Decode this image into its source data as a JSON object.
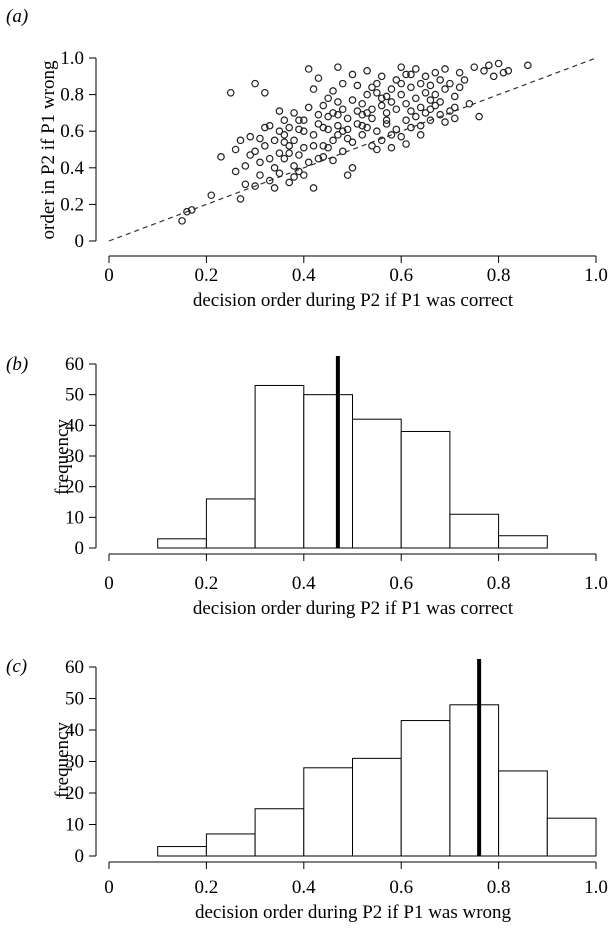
{
  "chart_data": [
    {
      "type": "scatter",
      "panel": "(a)",
      "xlabel": "decision order during P2 if P1 was correct",
      "ylabel": "order in P2 if P1 wrong",
      "xlim": [
        0,
        1.0
      ],
      "ylim": [
        0,
        1.0
      ],
      "xticks": [
        "0",
        "0.2",
        "0.4",
        "0.6",
        "0.8",
        "1.0"
      ],
      "yticks": [
        "0",
        "0.2",
        "0.4",
        "0.6",
        "0.8",
        "1.0"
      ],
      "reference_line": {
        "style": "dashed",
        "from": [
          0,
          0
        ],
        "to": [
          1.0,
          1.0
        ]
      },
      "points": [
        [
          0.15,
          0.11
        ],
        [
          0.16,
          0.16
        ],
        [
          0.17,
          0.17
        ],
        [
          0.21,
          0.25
        ],
        [
          0.23,
          0.46
        ],
        [
          0.25,
          0.81
        ],
        [
          0.26,
          0.38
        ],
        [
          0.27,
          0.23
        ],
        [
          0.27,
          0.55
        ],
        [
          0.28,
          0.41
        ],
        [
          0.28,
          0.31
        ],
        [
          0.29,
          0.57
        ],
        [
          0.3,
          0.86
        ],
        [
          0.3,
          0.49
        ],
        [
          0.3,
          0.3
        ],
        [
          0.31,
          0.43
        ],
        [
          0.31,
          0.36
        ],
        [
          0.32,
          0.52
        ],
        [
          0.32,
          0.81
        ],
        [
          0.32,
          0.62
        ],
        [
          0.33,
          0.45
        ],
        [
          0.33,
          0.33
        ],
        [
          0.34,
          0.29
        ],
        [
          0.34,
          0.55
        ],
        [
          0.34,
          0.4
        ],
        [
          0.35,
          0.71
        ],
        [
          0.35,
          0.37
        ],
        [
          0.35,
          0.48
        ],
        [
          0.36,
          0.66
        ],
        [
          0.36,
          0.58
        ],
        [
          0.36,
          0.45
        ],
        [
          0.37,
          0.32
        ],
        [
          0.37,
          0.52
        ],
        [
          0.37,
          0.62
        ],
        [
          0.38,
          0.7
        ],
        [
          0.38,
          0.41
        ],
        [
          0.38,
          0.55
        ],
        [
          0.39,
          0.61
        ],
        [
          0.39,
          0.38
        ],
        [
          0.39,
          0.47
        ],
        [
          0.4,
          0.66
        ],
        [
          0.4,
          0.36
        ],
        [
          0.4,
          0.51
        ],
        [
          0.41,
          0.73
        ],
        [
          0.41,
          0.43
        ],
        [
          0.41,
          0.94
        ],
        [
          0.42,
          0.58
        ],
        [
          0.42,
          0.83
        ],
        [
          0.42,
          0.29
        ],
        [
          0.43,
          0.45
        ],
        [
          0.43,
          0.64
        ],
        [
          0.43,
          0.89
        ],
        [
          0.44,
          0.74
        ],
        [
          0.44,
          0.52
        ],
        [
          0.44,
          0.46
        ],
        [
          0.45,
          0.78
        ],
        [
          0.45,
          0.61
        ],
        [
          0.45,
          0.68
        ],
        [
          0.46,
          0.55
        ],
        [
          0.46,
          0.44
        ],
        [
          0.46,
          0.82
        ],
        [
          0.47,
          0.69
        ],
        [
          0.47,
          0.63
        ],
        [
          0.47,
          0.76
        ],
        [
          0.48,
          0.49
        ],
        [
          0.48,
          0.86
        ],
        [
          0.48,
          0.72
        ],
        [
          0.49,
          0.36
        ],
        [
          0.49,
          0.56
        ],
        [
          0.49,
          0.67
        ],
        [
          0.5,
          0.77
        ],
        [
          0.5,
          0.91
        ],
        [
          0.5,
          0.4
        ],
        [
          0.51,
          0.64
        ],
        [
          0.51,
          0.71
        ],
        [
          0.51,
          0.85
        ],
        [
          0.52,
          0.58
        ],
        [
          0.52,
          0.69
        ],
        [
          0.52,
          0.75
        ],
        [
          0.53,
          0.8
        ],
        [
          0.53,
          0.62
        ],
        [
          0.53,
          0.93
        ],
        [
          0.54,
          0.52
        ],
        [
          0.54,
          0.72
        ],
        [
          0.54,
          0.67
        ],
        [
          0.55,
          0.81
        ],
        [
          0.55,
          0.6
        ],
        [
          0.55,
          0.86
        ],
        [
          0.56,
          0.74
        ],
        [
          0.56,
          0.55
        ],
        [
          0.56,
          0.9
        ],
        [
          0.57,
          0.64
        ],
        [
          0.57,
          0.79
        ],
        [
          0.57,
          0.7
        ],
        [
          0.58,
          0.83
        ],
        [
          0.58,
          0.51
        ],
        [
          0.58,
          0.76
        ],
        [
          0.59,
          0.88
        ],
        [
          0.59,
          0.61
        ],
        [
          0.59,
          0.72
        ],
        [
          0.6,
          0.95
        ],
        [
          0.6,
          0.57
        ],
        [
          0.6,
          0.8
        ],
        [
          0.61,
          0.66
        ],
        [
          0.61,
          0.91
        ],
        [
          0.61,
          0.75
        ],
        [
          0.62,
          0.84
        ],
        [
          0.62,
          0.62
        ],
        [
          0.62,
          0.71
        ],
        [
          0.63,
          0.78
        ],
        [
          0.63,
          0.94
        ],
        [
          0.63,
          0.68
        ],
        [
          0.64,
          0.86
        ],
        [
          0.64,
          0.73
        ],
        [
          0.64,
          0.63
        ],
        [
          0.65,
          0.81
        ],
        [
          0.65,
          0.9
        ],
        [
          0.65,
          0.7
        ],
        [
          0.66,
          0.77
        ],
        [
          0.66,
          0.85
        ],
        [
          0.66,
          0.66
        ],
        [
          0.67,
          0.92
        ],
        [
          0.67,
          0.74
        ],
        [
          0.67,
          0.8
        ],
        [
          0.68,
          0.88
        ],
        [
          0.68,
          0.69
        ],
        [
          0.68,
          0.76
        ],
        [
          0.69,
          0.83
        ],
        [
          0.69,
          0.94
        ],
        [
          0.7,
          0.71
        ],
        [
          0.7,
          0.86
        ],
        [
          0.71,
          0.79
        ],
        [
          0.71,
          0.67
        ],
        [
          0.72,
          0.92
        ],
        [
          0.72,
          0.84
        ],
        [
          0.73,
          0.88
        ],
        [
          0.74,
          0.75
        ],
        [
          0.75,
          0.95
        ],
        [
          0.76,
          0.68
        ],
        [
          0.77,
          0.93
        ],
        [
          0.78,
          0.96
        ],
        [
          0.79,
          0.9
        ],
        [
          0.8,
          0.97
        ],
        [
          0.81,
          0.92
        ],
        [
          0.82,
          0.93
        ],
        [
          0.86,
          0.96
        ],
        [
          0.35,
          0.6
        ],
        [
          0.44,
          0.62
        ],
        [
          0.47,
          0.58
        ],
        [
          0.52,
          0.63
        ],
        [
          0.4,
          0.6
        ],
        [
          0.46,
          0.7
        ],
        [
          0.49,
          0.61
        ],
        [
          0.57,
          0.66
        ],
        [
          0.39,
          0.66
        ],
        [
          0.42,
          0.52
        ],
        [
          0.48,
          0.6
        ],
        [
          0.53,
          0.7
        ],
        [
          0.31,
          0.56
        ],
        [
          0.37,
          0.48
        ],
        [
          0.45,
          0.51
        ],
        [
          0.5,
          0.54
        ],
        [
          0.55,
          0.5
        ],
        [
          0.58,
          0.58
        ],
        [
          0.43,
          0.69
        ],
        [
          0.36,
          0.54
        ],
        [
          0.33,
          0.63
        ],
        [
          0.29,
          0.47
        ],
        [
          0.26,
          0.5
        ],
        [
          0.38,
          0.35
        ],
        [
          0.61,
          0.53
        ],
        [
          0.64,
          0.58
        ],
        [
          0.66,
          0.72
        ],
        [
          0.69,
          0.65
        ],
        [
          0.71,
          0.73
        ],
        [
          0.56,
          0.78
        ],
        [
          0.6,
          0.86
        ],
        [
          0.47,
          0.95
        ],
        [
          0.54,
          0.84
        ],
        [
          0.62,
          0.91
        ]
      ]
    },
    {
      "type": "bar",
      "panel": "(b)",
      "xlabel": "decision order during P2 if P1 was correct",
      "ylabel": "frequency",
      "xlim": [
        0,
        1.0
      ],
      "ylim": [
        0,
        60
      ],
      "xticks": [
        "0",
        "0.2",
        "0.4",
        "0.6",
        "0.8",
        "1.0"
      ],
      "yticks": [
        "0",
        "10",
        "20",
        "30",
        "40",
        "50",
        "60"
      ],
      "bin_edges": [
        0.1,
        0.2,
        0.3,
        0.4,
        0.5,
        0.6,
        0.7,
        0.8,
        0.9
      ],
      "values": [
        3,
        16,
        53,
        50,
        42,
        38,
        11,
        4
      ],
      "mean_line": 0.47
    },
    {
      "type": "bar",
      "panel": "(c)",
      "xlabel": "decision order during P2 if P1 was wrong",
      "ylabel": "frequency",
      "xlim": [
        0,
        1.0
      ],
      "ylim": [
        0,
        60
      ],
      "xticks": [
        "0",
        "0.2",
        "0.4",
        "0.6",
        "0.8",
        "1.0"
      ],
      "yticks": [
        "0",
        "10",
        "20",
        "30",
        "40",
        "50",
        "60"
      ],
      "bin_edges": [
        0.1,
        0.2,
        0.3,
        0.4,
        0.5,
        0.6,
        0.7,
        0.8,
        0.9,
        1.0
      ],
      "values": [
        3,
        7,
        15,
        28,
        31,
        43,
        48,
        27,
        12
      ],
      "mean_line": 0.76
    }
  ]
}
